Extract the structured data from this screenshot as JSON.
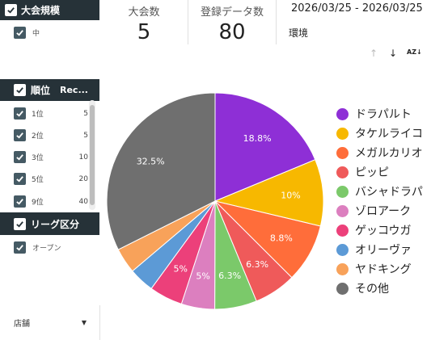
{
  "filters": {
    "tournament_size": {
      "title": "大会規模",
      "options": [
        {
          "label": "中",
          "checked": true
        }
      ]
    },
    "rank": {
      "title": "順位",
      "count_header": "Rec...",
      "rows": [
        {
          "label": "1位",
          "count": "5"
        },
        {
          "label": "2位",
          "count": "5"
        },
        {
          "label": "3位",
          "count": "10"
        },
        {
          "label": "5位",
          "count": "20"
        },
        {
          "label": "9位",
          "count": "40"
        }
      ]
    },
    "league": {
      "title": "リーグ区分",
      "options": [
        {
          "label": "オープン",
          "checked": true
        }
      ]
    },
    "store": {
      "label": "店舗"
    }
  },
  "scorecards": [
    {
      "label": "大会数",
      "value": "5"
    },
    {
      "label": "登録データ数",
      "value": "80"
    }
  ],
  "date_range": "2026/03/25 - 2026/03/25",
  "environment_label": "環境",
  "toolbar": {
    "sort_icons": [
      "arrow-up-icon",
      "arrow-down-icon",
      "sort-az-icon"
    ]
  },
  "colors": {
    "header_bg": "#263238",
    "ドラパルト": "#8e2fd6",
    "タケルライコ": "#f7b800",
    "メガルカリオ": "#ff6d3a",
    "ピッピ": "#ef5a5a",
    "バシャドラパ": "#7bc96a",
    "ゾロアーク": "#dc7fbf",
    "ゲッコウガ": "#ec407a",
    "オリーヴァ": "#5c9ad6",
    "ヤドキング": "#f8a25a",
    "その他": "#6f6f6f"
  },
  "chart_data": {
    "type": "pie",
    "title": "",
    "slices": [
      {
        "label": "ドラパルト",
        "value": 18.8,
        "value_label": "18.8%"
      },
      {
        "label": "タケルライコ",
        "value": 10.0,
        "value_label": "10%"
      },
      {
        "label": "メガルカリオ",
        "value": 8.8,
        "value_label": "8.8%"
      },
      {
        "label": "ピッピ",
        "value": 6.3,
        "value_label": "6.3%"
      },
      {
        "label": "バシャドラパ",
        "value": 6.3,
        "value_label": "6.3%"
      },
      {
        "label": "ゾロアーク",
        "value": 5.0,
        "value_label": "5%"
      },
      {
        "label": "ゲッコウガ",
        "value": 5.0,
        "value_label": "5%"
      },
      {
        "label": "オリーヴァ",
        "value": 3.8,
        "value_label": ""
      },
      {
        "label": "ヤドキング",
        "value": 3.8,
        "value_label": ""
      },
      {
        "label": "その他",
        "value": 32.5,
        "value_label": "32.5%"
      }
    ],
    "legend_position": "right"
  }
}
